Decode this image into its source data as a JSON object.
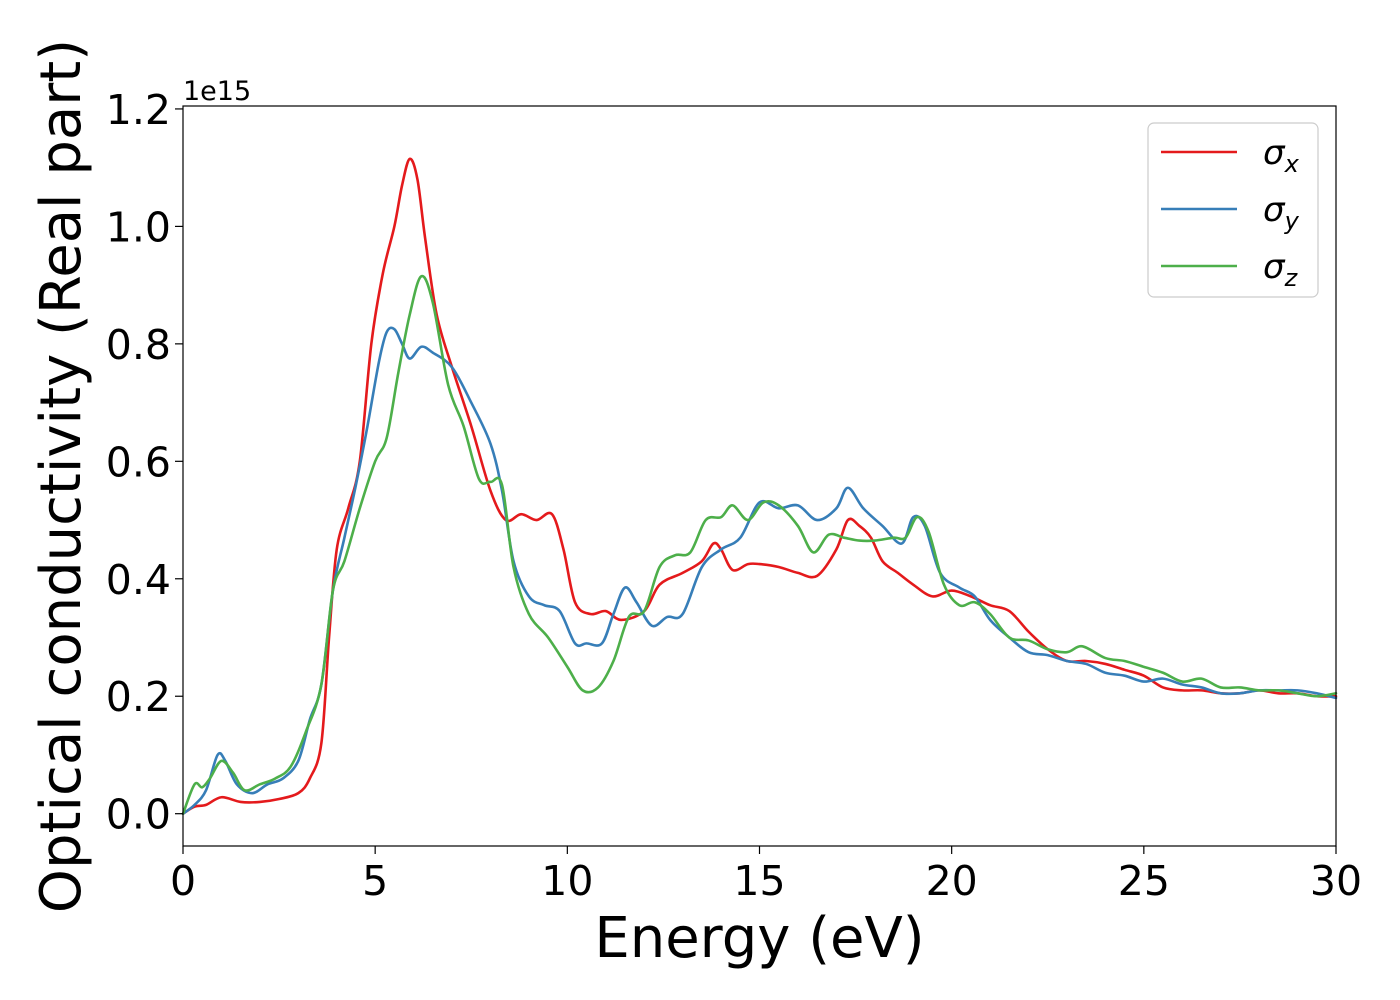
{
  "chart_data": {
    "type": "line",
    "xlabel": "Energy (eV)",
    "ylabel": "Optical conductivity (Real part)",
    "y_offset_label": "1e15",
    "xlim": [
      0,
      30
    ],
    "ylim": [
      -0.055,
      1.205
    ],
    "y_scale_factor": 1000000000000000.0,
    "x_ticks": [
      0,
      5,
      10,
      15,
      20,
      25,
      30
    ],
    "x_tick_labels": [
      "0",
      "5",
      "10",
      "15",
      "20",
      "25",
      "30"
    ],
    "y_ticks": [
      0.0,
      0.2,
      0.4,
      0.6,
      0.8,
      1.0,
      1.2
    ],
    "y_tick_labels": [
      "0.0",
      "0.2",
      "0.4",
      "0.6",
      "0.8",
      "1.0",
      "1.2"
    ],
    "grid": false,
    "legend": {
      "position": "top-right"
    },
    "series": [
      {
        "name": "σx",
        "legend_base": "σ",
        "legend_sub": "x",
        "color": "#e41a1c",
        "points": [
          [
            0,
            0.0
          ],
          [
            0.3,
            0.012
          ],
          [
            0.6,
            0.015
          ],
          [
            1.0,
            0.028
          ],
          [
            1.5,
            0.02
          ],
          [
            2.0,
            0.02
          ],
          [
            2.5,
            0.025
          ],
          [
            3.0,
            0.035
          ],
          [
            3.3,
            0.06
          ],
          [
            3.6,
            0.12
          ],
          [
            3.8,
            0.3
          ],
          [
            4.0,
            0.45
          ],
          [
            4.3,
            0.52
          ],
          [
            4.6,
            0.6
          ],
          [
            4.9,
            0.8
          ],
          [
            5.2,
            0.92
          ],
          [
            5.5,
            1.0
          ],
          [
            5.7,
            1.07
          ],
          [
            5.9,
            1.115
          ],
          [
            6.1,
            1.08
          ],
          [
            6.3,
            0.98
          ],
          [
            6.6,
            0.85
          ],
          [
            7.0,
            0.76
          ],
          [
            7.5,
            0.66
          ],
          [
            8.0,
            0.55
          ],
          [
            8.4,
            0.5
          ],
          [
            8.8,
            0.51
          ],
          [
            9.2,
            0.5
          ],
          [
            9.6,
            0.51
          ],
          [
            9.9,
            0.45
          ],
          [
            10.2,
            0.36
          ],
          [
            10.6,
            0.34
          ],
          [
            11.0,
            0.345
          ],
          [
            11.4,
            0.33
          ],
          [
            12.0,
            0.345
          ],
          [
            12.4,
            0.39
          ],
          [
            13.0,
            0.41
          ],
          [
            13.5,
            0.43
          ],
          [
            13.8,
            0.46
          ],
          [
            14.0,
            0.45
          ],
          [
            14.3,
            0.415
          ],
          [
            14.7,
            0.425
          ],
          [
            15.0,
            0.425
          ],
          [
            15.5,
            0.42
          ],
          [
            16.0,
            0.41
          ],
          [
            16.5,
            0.405
          ],
          [
            17.0,
            0.45
          ],
          [
            17.3,
            0.5
          ],
          [
            17.6,
            0.49
          ],
          [
            17.9,
            0.47
          ],
          [
            18.2,
            0.43
          ],
          [
            18.6,
            0.41
          ],
          [
            19.0,
            0.39
          ],
          [
            19.5,
            0.37
          ],
          [
            20.0,
            0.38
          ],
          [
            20.5,
            0.37
          ],
          [
            21.0,
            0.355
          ],
          [
            21.5,
            0.345
          ],
          [
            22.0,
            0.31
          ],
          [
            22.5,
            0.28
          ],
          [
            23.0,
            0.26
          ],
          [
            23.5,
            0.26
          ],
          [
            24.0,
            0.255
          ],
          [
            24.5,
            0.245
          ],
          [
            25.0,
            0.235
          ],
          [
            25.5,
            0.215
          ],
          [
            26.0,
            0.21
          ],
          [
            26.5,
            0.21
          ],
          [
            27.0,
            0.205
          ],
          [
            27.5,
            0.205
          ],
          [
            28.0,
            0.21
          ],
          [
            28.5,
            0.205
          ],
          [
            29.0,
            0.205
          ],
          [
            29.5,
            0.2
          ],
          [
            30.0,
            0.2
          ]
        ]
      },
      {
        "name": "σy",
        "legend_base": "σ",
        "legend_sub": "y",
        "color": "#377eb8",
        "points": [
          [
            0,
            0.0
          ],
          [
            0.3,
            0.015
          ],
          [
            0.6,
            0.04
          ],
          [
            0.9,
            0.1
          ],
          [
            1.1,
            0.09
          ],
          [
            1.4,
            0.05
          ],
          [
            1.8,
            0.035
          ],
          [
            2.2,
            0.05
          ],
          [
            2.6,
            0.06
          ],
          [
            3.0,
            0.09
          ],
          [
            3.3,
            0.16
          ],
          [
            3.6,
            0.22
          ],
          [
            3.9,
            0.38
          ],
          [
            4.2,
            0.47
          ],
          [
            4.5,
            0.56
          ],
          [
            4.8,
            0.66
          ],
          [
            5.1,
            0.77
          ],
          [
            5.3,
            0.82
          ],
          [
            5.5,
            0.825
          ],
          [
            5.7,
            0.8
          ],
          [
            5.9,
            0.775
          ],
          [
            6.2,
            0.795
          ],
          [
            6.5,
            0.785
          ],
          [
            7.0,
            0.76
          ],
          [
            7.5,
            0.7
          ],
          [
            8.0,
            0.63
          ],
          [
            8.3,
            0.55
          ],
          [
            8.6,
            0.43
          ],
          [
            9.0,
            0.37
          ],
          [
            9.4,
            0.355
          ],
          [
            9.8,
            0.345
          ],
          [
            10.2,
            0.29
          ],
          [
            10.5,
            0.29
          ],
          [
            10.9,
            0.29
          ],
          [
            11.2,
            0.34
          ],
          [
            11.5,
            0.385
          ],
          [
            11.8,
            0.36
          ],
          [
            12.2,
            0.32
          ],
          [
            12.6,
            0.335
          ],
          [
            13.0,
            0.34
          ],
          [
            13.5,
            0.42
          ],
          [
            14.0,
            0.45
          ],
          [
            14.5,
            0.47
          ],
          [
            15.0,
            0.53
          ],
          [
            15.5,
            0.52
          ],
          [
            16.0,
            0.525
          ],
          [
            16.5,
            0.5
          ],
          [
            17.0,
            0.52
          ],
          [
            17.3,
            0.555
          ],
          [
            17.7,
            0.52
          ],
          [
            18.2,
            0.49
          ],
          [
            18.7,
            0.46
          ],
          [
            19.0,
            0.505
          ],
          [
            19.3,
            0.49
          ],
          [
            19.7,
            0.41
          ],
          [
            20.2,
            0.385
          ],
          [
            20.6,
            0.37
          ],
          [
            21.0,
            0.33
          ],
          [
            21.5,
            0.3
          ],
          [
            22.0,
            0.275
          ],
          [
            22.5,
            0.27
          ],
          [
            23.0,
            0.26
          ],
          [
            23.5,
            0.255
          ],
          [
            24.0,
            0.24
          ],
          [
            24.5,
            0.235
          ],
          [
            25.0,
            0.225
          ],
          [
            25.5,
            0.23
          ],
          [
            26.0,
            0.22
          ],
          [
            26.5,
            0.215
          ],
          [
            27.0,
            0.205
          ],
          [
            27.5,
            0.205
          ],
          [
            28.0,
            0.21
          ],
          [
            28.5,
            0.21
          ],
          [
            29.0,
            0.21
          ],
          [
            29.5,
            0.205
          ],
          [
            30.0,
            0.197
          ]
        ]
      },
      {
        "name": "σz",
        "legend_base": "σ",
        "legend_sub": "z",
        "color": "#4daf4a",
        "points": [
          [
            0,
            0.0
          ],
          [
            0.3,
            0.05
          ],
          [
            0.5,
            0.045
          ],
          [
            0.7,
            0.06
          ],
          [
            1.0,
            0.09
          ],
          [
            1.3,
            0.07
          ],
          [
            1.6,
            0.04
          ],
          [
            2.0,
            0.05
          ],
          [
            2.4,
            0.06
          ],
          [
            2.8,
            0.08
          ],
          [
            3.2,
            0.14
          ],
          [
            3.6,
            0.22
          ],
          [
            3.9,
            0.38
          ],
          [
            4.2,
            0.43
          ],
          [
            4.6,
            0.52
          ],
          [
            5.0,
            0.6
          ],
          [
            5.3,
            0.64
          ],
          [
            5.6,
            0.75
          ],
          [
            5.9,
            0.85
          ],
          [
            6.2,
            0.915
          ],
          [
            6.5,
            0.87
          ],
          [
            6.9,
            0.73
          ],
          [
            7.3,
            0.66
          ],
          [
            7.7,
            0.57
          ],
          [
            8.0,
            0.565
          ],
          [
            8.3,
            0.56
          ],
          [
            8.6,
            0.42
          ],
          [
            9.0,
            0.34
          ],
          [
            9.5,
            0.3
          ],
          [
            10.0,
            0.25
          ],
          [
            10.4,
            0.21
          ],
          [
            10.8,
            0.215
          ],
          [
            11.2,
            0.26
          ],
          [
            11.6,
            0.335
          ],
          [
            12.0,
            0.345
          ],
          [
            12.4,
            0.42
          ],
          [
            12.8,
            0.44
          ],
          [
            13.2,
            0.445
          ],
          [
            13.6,
            0.5
          ],
          [
            14.0,
            0.505
          ],
          [
            14.3,
            0.525
          ],
          [
            14.7,
            0.5
          ],
          [
            15.1,
            0.53
          ],
          [
            15.5,
            0.525
          ],
          [
            16.0,
            0.49
          ],
          [
            16.4,
            0.445
          ],
          [
            16.8,
            0.475
          ],
          [
            17.2,
            0.47
          ],
          [
            17.6,
            0.465
          ],
          [
            18.0,
            0.465
          ],
          [
            18.5,
            0.47
          ],
          [
            18.8,
            0.47
          ],
          [
            19.1,
            0.505
          ],
          [
            19.4,
            0.48
          ],
          [
            19.8,
            0.39
          ],
          [
            20.2,
            0.355
          ],
          [
            20.6,
            0.36
          ],
          [
            21.0,
            0.34
          ],
          [
            21.5,
            0.3
          ],
          [
            22.0,
            0.295
          ],
          [
            22.5,
            0.28
          ],
          [
            23.0,
            0.275
          ],
          [
            23.4,
            0.285
          ],
          [
            24.0,
            0.265
          ],
          [
            24.5,
            0.26
          ],
          [
            25.0,
            0.25
          ],
          [
            25.5,
            0.24
          ],
          [
            26.0,
            0.225
          ],
          [
            26.5,
            0.23
          ],
          [
            27.0,
            0.215
          ],
          [
            27.5,
            0.215
          ],
          [
            28.0,
            0.21
          ],
          [
            28.5,
            0.21
          ],
          [
            29.0,
            0.205
          ],
          [
            29.5,
            0.2
          ],
          [
            30.0,
            0.205
          ]
        ]
      }
    ]
  }
}
